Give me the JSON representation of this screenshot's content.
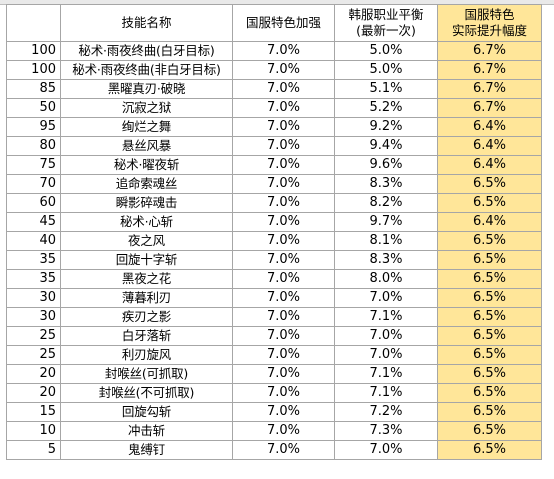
{
  "headers": {
    "col1": "",
    "col2": "技能名称",
    "col3": "国服特色加强",
    "col4_line1": "韩服职业平衡",
    "col4_line2": "(最新一次)",
    "col5_line1": "国服特色",
    "col5_line2": "实际提升幅度"
  },
  "rows": [
    {
      "cost": "100",
      "name": "秘术·雨夜终曲(白牙目标)",
      "cn": "7.0%",
      "kr": "5.0%",
      "actual": "6.7%"
    },
    {
      "cost": "100",
      "name": "秘术·雨夜终曲(非白牙目标)",
      "cn": "7.0%",
      "kr": "5.0%",
      "actual": "6.7%"
    },
    {
      "cost": "85",
      "name": "黑曜真刃·破晓",
      "cn": "7.0%",
      "kr": "5.1%",
      "actual": "6.7%"
    },
    {
      "cost": "50",
      "name": "沉寂之狱",
      "cn": "7.0%",
      "kr": "5.2%",
      "actual": "6.7%"
    },
    {
      "cost": "95",
      "name": "绚烂之舞",
      "cn": "7.0%",
      "kr": "9.2%",
      "actual": "6.4%"
    },
    {
      "cost": "80",
      "name": "悬丝风暴",
      "cn": "7.0%",
      "kr": "9.4%",
      "actual": "6.4%"
    },
    {
      "cost": "75",
      "name": "秘术·曜夜斩",
      "cn": "7.0%",
      "kr": "9.6%",
      "actual": "6.4%"
    },
    {
      "cost": "70",
      "name": "追命索魂丝",
      "cn": "7.0%",
      "kr": "8.3%",
      "actual": "6.5%"
    },
    {
      "cost": "60",
      "name": "瞬影碎魂击",
      "cn": "7.0%",
      "kr": "8.2%",
      "actual": "6.5%"
    },
    {
      "cost": "45",
      "name": "秘术·心斩",
      "cn": "7.0%",
      "kr": "9.7%",
      "actual": "6.4%"
    },
    {
      "cost": "40",
      "name": "夜之风",
      "cn": "7.0%",
      "kr": "8.1%",
      "actual": "6.5%"
    },
    {
      "cost": "35",
      "name": "回旋十字斩",
      "cn": "7.0%",
      "kr": "8.3%",
      "actual": "6.5%"
    },
    {
      "cost": "35",
      "name": "黑夜之花",
      "cn": "7.0%",
      "kr": "8.0%",
      "actual": "6.5%"
    },
    {
      "cost": "30",
      "name": "薄暮利刃",
      "cn": "7.0%",
      "kr": "7.0%",
      "actual": "6.5%"
    },
    {
      "cost": "30",
      "name": "疾刃之影",
      "cn": "7.0%",
      "kr": "7.1%",
      "actual": "6.5%"
    },
    {
      "cost": "25",
      "name": "白牙落斩",
      "cn": "7.0%",
      "kr": "7.0%",
      "actual": "6.5%"
    },
    {
      "cost": "25",
      "name": "利刃旋风",
      "cn": "7.0%",
      "kr": "7.0%",
      "actual": "6.5%"
    },
    {
      "cost": "20",
      "name": "封喉丝(可抓取)",
      "cn": "7.0%",
      "kr": "7.1%",
      "actual": "6.5%"
    },
    {
      "cost": "20",
      "name": "封喉丝(不可抓取)",
      "cn": "7.0%",
      "kr": "7.1%",
      "actual": "6.5%"
    },
    {
      "cost": "15",
      "name": "回旋勾斩",
      "cn": "7.0%",
      "kr": "7.2%",
      "actual": "6.5%"
    },
    {
      "cost": "10",
      "name": "冲击斩",
      "cn": "7.0%",
      "kr": "7.3%",
      "actual": "6.5%"
    },
    {
      "cost": "5",
      "name": "鬼缚钉",
      "cn": "7.0%",
      "kr": "7.0%",
      "actual": "6.5%"
    }
  ],
  "colors": {
    "highlight": "#ffe699",
    "border": "#a6a6a6"
  }
}
